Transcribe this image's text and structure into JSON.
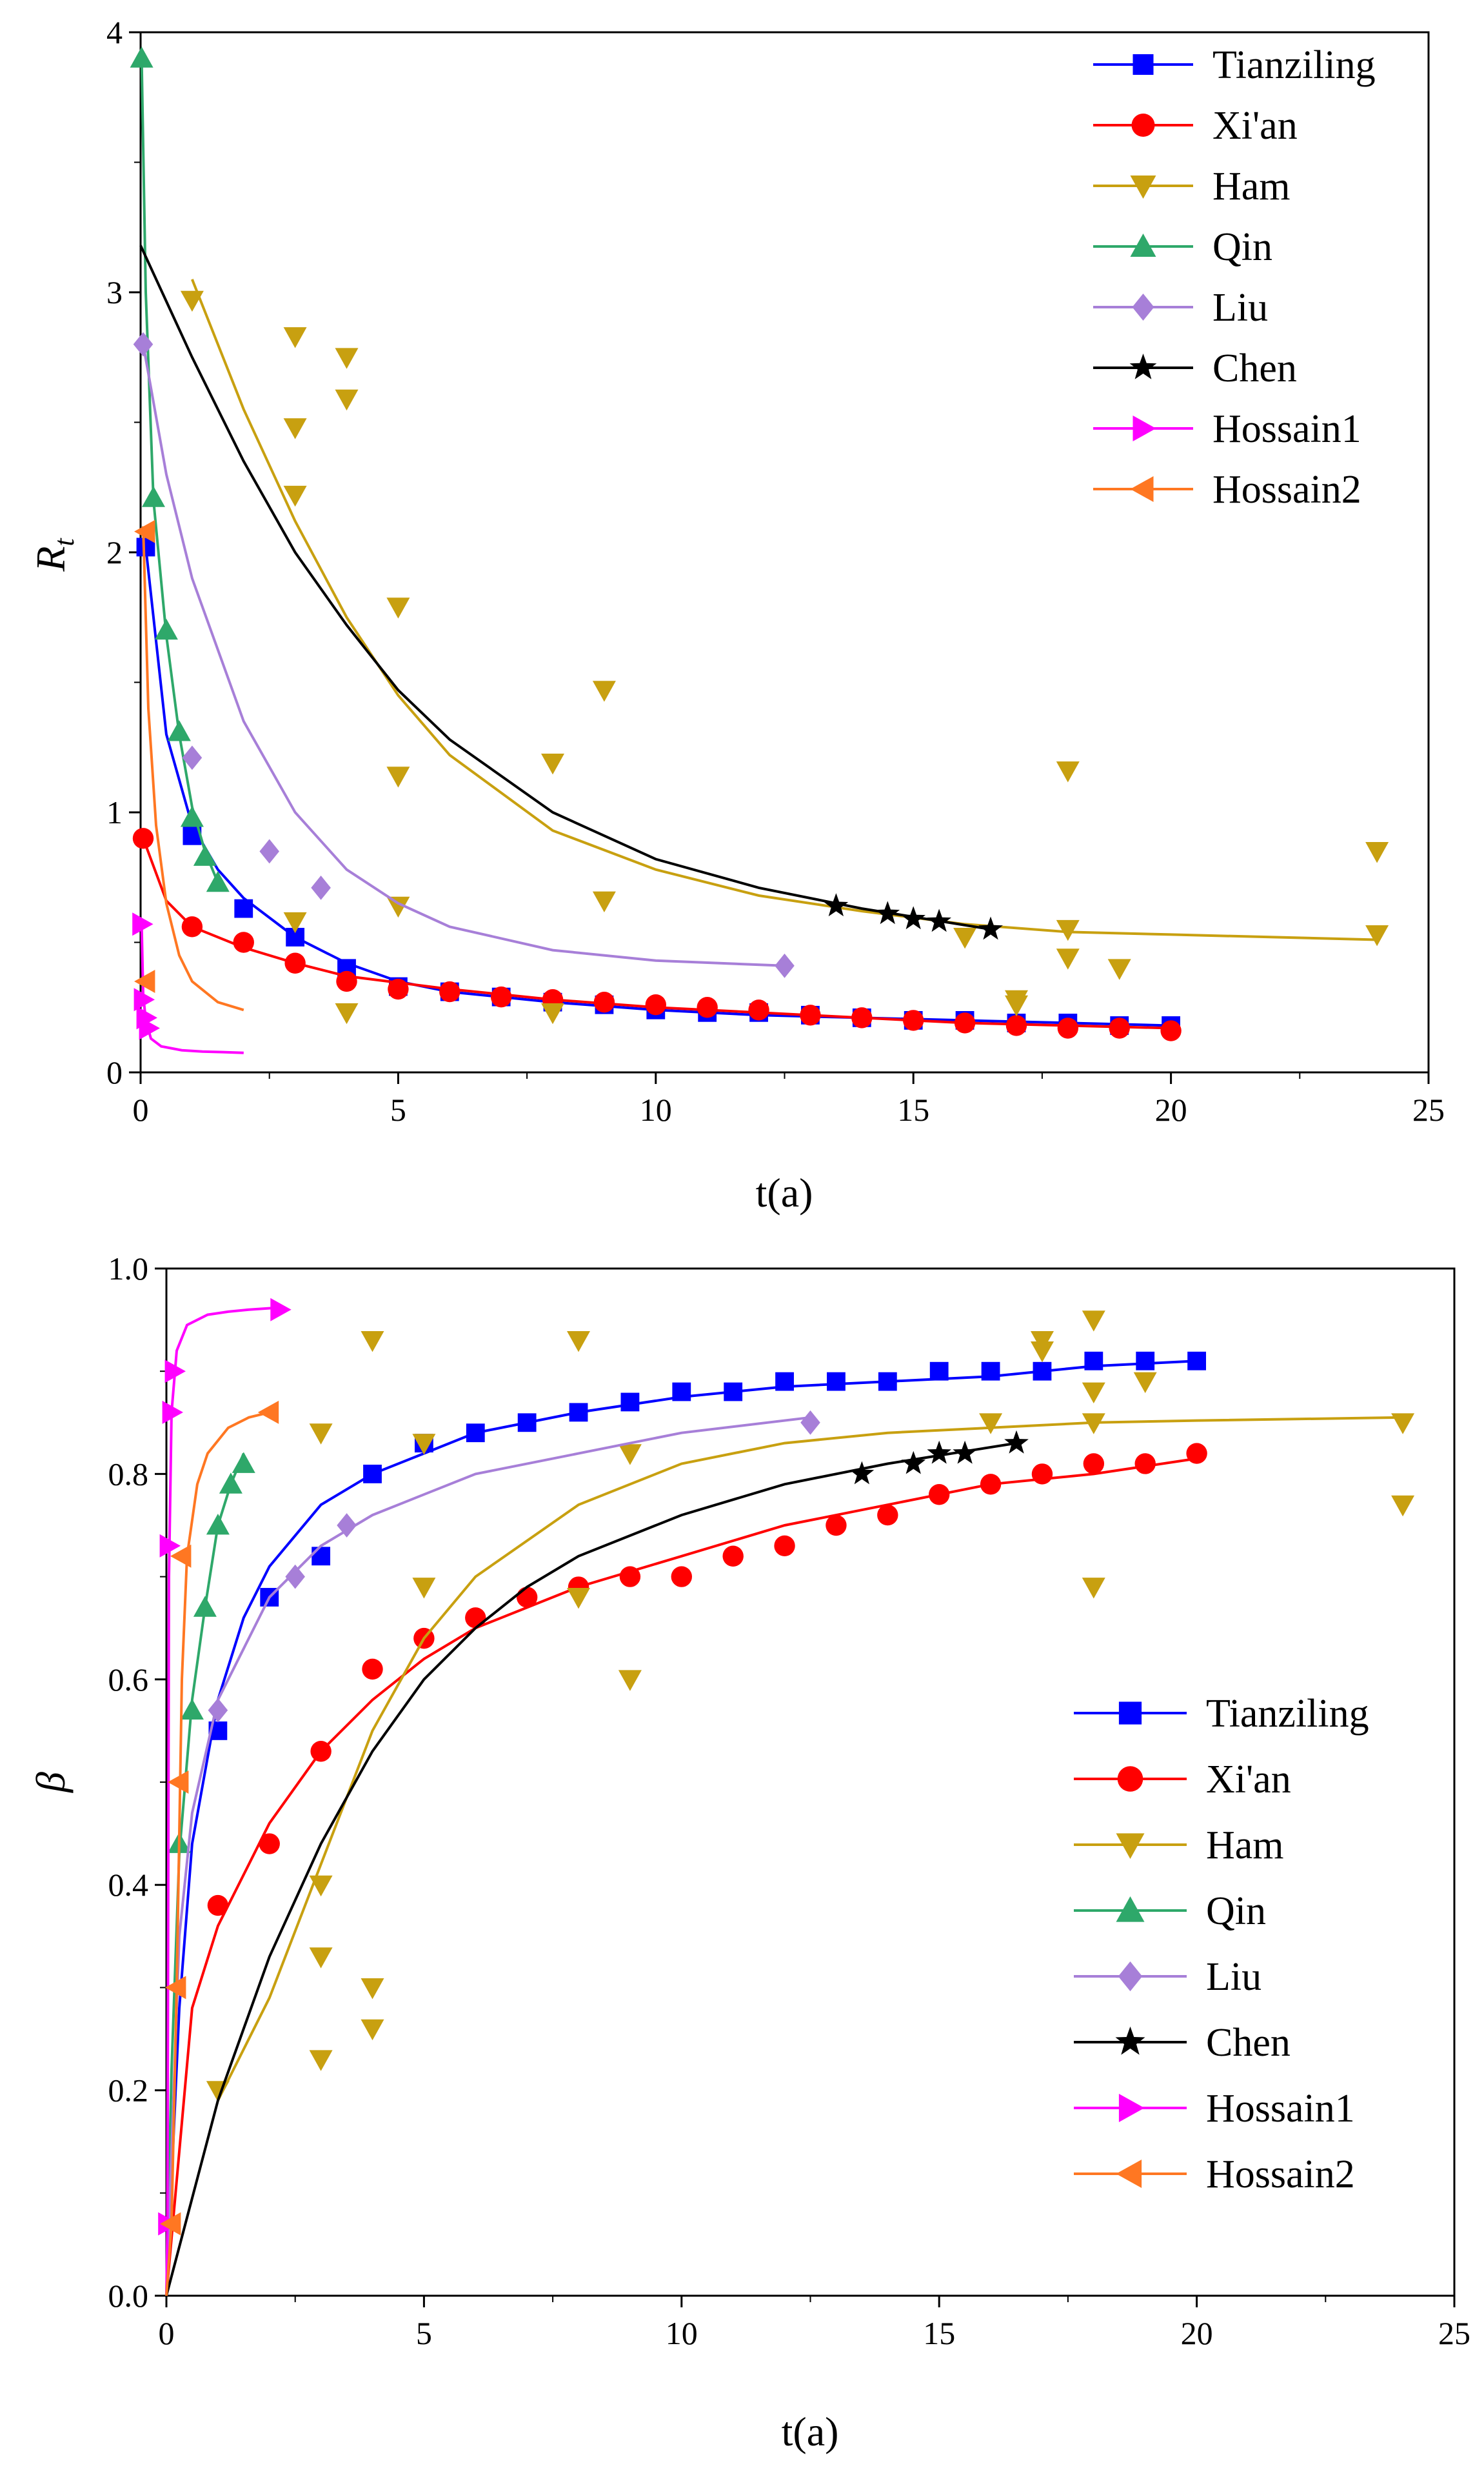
{
  "chart_data": [
    {
      "type": "scatter",
      "panel": "top",
      "xlabel": "t(a)",
      "ylabel": "R",
      "ylabel_subscript": "t",
      "xlim": [
        0,
        25
      ],
      "ylim": [
        0,
        4
      ],
      "xticks": [
        0,
        5,
        10,
        15,
        20,
        25
      ],
      "yticks": [
        0,
        1,
        2,
        3,
        4
      ],
      "legend_position": "top-right",
      "series": [
        {
          "name": "Tianziling",
          "color": "#0000FF",
          "marker": "square",
          "x": [
            0.1,
            1,
            2,
            3,
            4,
            5,
            6,
            7,
            8,
            9,
            10,
            11,
            12,
            13,
            14,
            15,
            16,
            17,
            18,
            19,
            20
          ],
          "y": [
            2.02,
            0.91,
            0.63,
            0.52,
            0.4,
            0.33,
            0.31,
            0.29,
            0.27,
            0.26,
            0.24,
            0.23,
            0.23,
            0.22,
            0.21,
            0.2,
            0.2,
            0.19,
            0.19,
            0.18,
            0.18
          ],
          "fit_x": [
            0.1,
            0.5,
            1,
            1.5,
            2,
            3,
            4,
            5,
            6,
            8,
            10,
            12,
            14,
            16,
            18,
            20
          ],
          "fit_y": [
            2.02,
            1.3,
            0.95,
            0.78,
            0.67,
            0.52,
            0.42,
            0.35,
            0.31,
            0.27,
            0.24,
            0.22,
            0.21,
            0.2,
            0.19,
            0.18
          ]
        },
        {
          "name": "Xi'an",
          "color": "#FF0000",
          "marker": "circle",
          "x": [
            0.05,
            1,
            2,
            3,
            4,
            5,
            6,
            7,
            8,
            9,
            10,
            11,
            12,
            13,
            14,
            15,
            16,
            17,
            18,
            19,
            20
          ],
          "y": [
            0.9,
            0.56,
            0.5,
            0.42,
            0.35,
            0.32,
            0.31,
            0.29,
            0.28,
            0.27,
            0.26,
            0.25,
            0.24,
            0.22,
            0.21,
            0.2,
            0.19,
            0.18,
            0.17,
            0.17,
            0.16
          ],
          "fit_x": [
            0.05,
            0.5,
            1,
            2,
            3,
            4,
            6,
            8,
            10,
            12,
            14,
            16,
            18,
            20
          ],
          "fit_y": [
            0.9,
            0.66,
            0.56,
            0.48,
            0.42,
            0.37,
            0.32,
            0.28,
            0.25,
            0.23,
            0.21,
            0.19,
            0.18,
            0.17
          ]
        },
        {
          "name": "Ham",
          "color": "#C8A010",
          "marker": "triangle-down",
          "x": [
            1,
            3,
            3,
            3,
            3,
            4,
            4,
            4,
            5,
            5,
            5,
            8,
            8,
            9,
            9,
            16,
            17,
            17,
            18,
            18,
            18,
            19,
            24,
            24
          ],
          "y": [
            2.97,
            2.83,
            2.48,
            2.22,
            0.58,
            2.75,
            2.59,
            0.23,
            1.79,
            1.14,
            0.64,
            1.19,
            0.23,
            1.47,
            0.66,
            0.52,
            0.28,
            0.26,
            1.16,
            0.55,
            0.44,
            0.4,
            0.85,
            0.53
          ],
          "fit_x": [
            1,
            2,
            3,
            4,
            5,
            6,
            8,
            10,
            12,
            14,
            16,
            18,
            20,
            24
          ],
          "fit_y": [
            3.05,
            2.55,
            2.12,
            1.75,
            1.45,
            1.22,
            0.93,
            0.78,
            0.68,
            0.62,
            0.57,
            0.54,
            0.53,
            0.51
          ]
        },
        {
          "name": "Qin",
          "color": "#2EA86A",
          "marker": "triangle-up",
          "x": [
            0.02,
            0.25,
            0.5,
            0.75,
            1.0,
            1.25,
            1.5
          ],
          "y": [
            3.9,
            2.21,
            1.7,
            1.31,
            0.98,
            0.83,
            0.73
          ],
          "fit_x": [
            0.02,
            0.1,
            0.25,
            0.5,
            0.75,
            1.0,
            1.25,
            1.5
          ],
          "fit_y": [
            3.9,
            3.0,
            2.2,
            1.68,
            1.3,
            1.02,
            0.85,
            0.73
          ]
        },
        {
          "name": "Liu",
          "color": "#A77FD8",
          "marker": "diamond",
          "x": [
            0.05,
            1,
            2.5,
            3.5,
            12.5
          ],
          "y": [
            2.8,
            1.21,
            0.85,
            0.71,
            0.41
          ],
          "fit_x": [
            0.05,
            0.5,
            1,
            2,
            3,
            4,
            5,
            6,
            8,
            10,
            12.5
          ],
          "fit_y": [
            2.8,
            2.3,
            1.9,
            1.35,
            1.0,
            0.78,
            0.65,
            0.56,
            0.47,
            0.43,
            0.41
          ]
        },
        {
          "name": "Chen",
          "color": "#000000",
          "marker": "star",
          "x": [
            13.5,
            14.5,
            15,
            15.5,
            16.5
          ],
          "y": [
            0.64,
            0.61,
            0.59,
            0.58,
            0.55
          ],
          "fit_x": [
            0,
            1,
            2,
            3,
            4,
            5,
            6,
            8,
            10,
            12,
            14,
            16.5
          ],
          "fit_y": [
            3.18,
            2.75,
            2.35,
            2.0,
            1.72,
            1.47,
            1.28,
            1.0,
            0.82,
            0.71,
            0.63,
            0.55
          ]
        },
        {
          "name": "Hossain1",
          "color": "#FF00FF",
          "marker": "triangle-right",
          "x": [
            0.02,
            0.05,
            0.1,
            0.15
          ],
          "y": [
            0.57,
            0.28,
            0.21,
            0.17
          ],
          "fit_x": [
            0.02,
            0.05,
            0.1,
            0.2,
            0.4,
            0.8,
            1.2,
            1.6,
            2.0
          ],
          "fit_y": [
            0.57,
            0.3,
            0.2,
            0.13,
            0.1,
            0.085,
            0.08,
            0.078,
            0.075
          ]
        },
        {
          "name": "Hossain2",
          "color": "#FF7722",
          "marker": "triangle-left",
          "x": [
            0.1,
            0.1
          ],
          "y": [
            2.08,
            0.35
          ],
          "fit_x": [
            0.05,
            0.15,
            0.3,
            0.5,
            0.75,
            1.0,
            1.5,
            2.0
          ],
          "fit_y": [
            2.1,
            1.4,
            0.95,
            0.65,
            0.45,
            0.35,
            0.27,
            0.24
          ]
        }
      ]
    },
    {
      "type": "scatter",
      "panel": "bottom",
      "xlabel": "t(a)",
      "ylabel": "β",
      "xlim": [
        0,
        25
      ],
      "ylim": [
        0,
        1
      ],
      "xticks": [
        0,
        5,
        10,
        15,
        20,
        25
      ],
      "yticks": [
        "0.0",
        "0.2",
        "0.4",
        "0.6",
        "0.8",
        "1.0"
      ],
      "legend_position": "bottom-right",
      "series": [
        {
          "name": "Tianziling",
          "color": "#0000FF",
          "marker": "square",
          "x": [
            1,
            2,
            3,
            4,
            5,
            6,
            7,
            8,
            9,
            10,
            11,
            12,
            13,
            14,
            15,
            16,
            17,
            18,
            19,
            20
          ],
          "y": [
            0.55,
            0.68,
            0.72,
            0.8,
            0.83,
            0.84,
            0.85,
            0.86,
            0.87,
            0.88,
            0.88,
            0.89,
            0.89,
            0.89,
            0.9,
            0.9,
            0.9,
            0.91,
            0.91,
            0.91
          ],
          "fit_x": [
            0,
            0.25,
            0.5,
            1,
            1.5,
            2,
            3,
            4,
            5,
            6,
            8,
            10,
            12,
            14,
            16,
            18,
            20
          ],
          "fit_y": [
            0.0,
            0.28,
            0.44,
            0.58,
            0.66,
            0.71,
            0.77,
            0.8,
            0.82,
            0.84,
            0.86,
            0.875,
            0.885,
            0.89,
            0.895,
            0.905,
            0.91
          ]
        },
        {
          "name": "Xi'an",
          "color": "#FF0000",
          "marker": "circle",
          "x": [
            1,
            2,
            3,
            4,
            5,
            6,
            7,
            8,
            9,
            10,
            11,
            12,
            13,
            14,
            15,
            16,
            17,
            18,
            19,
            20
          ],
          "y": [
            0.38,
            0.44,
            0.53,
            0.61,
            0.64,
            0.66,
            0.68,
            0.69,
            0.7,
            0.7,
            0.72,
            0.73,
            0.75,
            0.76,
            0.78,
            0.79,
            0.8,
            0.81,
            0.81,
            0.82
          ],
          "fit_x": [
            0,
            0.5,
            1,
            2,
            3,
            4,
            5,
            6,
            8,
            10,
            12,
            14,
            16,
            18,
            20
          ],
          "fit_y": [
            0.0,
            0.28,
            0.36,
            0.46,
            0.53,
            0.58,
            0.62,
            0.65,
            0.69,
            0.72,
            0.75,
            0.77,
            0.79,
            0.8,
            0.815
          ]
        },
        {
          "name": "Ham",
          "color": "#C8A010",
          "marker": "triangle-down",
          "x": [
            1,
            3,
            3,
            3,
            3,
            4,
            4,
            4,
            5,
            5,
            8,
            8,
            9,
            9,
            16,
            17,
            17,
            18,
            18,
            18,
            18,
            19,
            24,
            24
          ],
          "y": [
            0.2,
            0.84,
            0.4,
            0.33,
            0.23,
            0.93,
            0.3,
            0.26,
            0.83,
            0.69,
            0.93,
            0.68,
            0.82,
            0.6,
            0.85,
            0.93,
            0.92,
            0.95,
            0.88,
            0.85,
            0.69,
            0.89,
            0.85,
            0.77
          ],
          "fit_x": [
            1,
            2,
            3,
            4,
            5,
            6,
            8,
            10,
            12,
            14,
            16,
            18,
            20,
            24
          ],
          "fit_y": [
            0.19,
            0.29,
            0.42,
            0.55,
            0.64,
            0.7,
            0.77,
            0.81,
            0.83,
            0.84,
            0.845,
            0.85,
            0.852,
            0.855
          ]
        },
        {
          "name": "Qin",
          "color": "#2EA86A",
          "marker": "triangle-up",
          "x": [
            0.25,
            0.5,
            0.75,
            1.0,
            1.25,
            1.5
          ],
          "y": [
            0.44,
            0.57,
            0.67,
            0.75,
            0.79,
            0.81
          ],
          "fit_x": [
            0,
            0.1,
            0.25,
            0.5,
            0.75,
            1.0,
            1.25,
            1.5
          ],
          "fit_y": [
            0.0,
            0.22,
            0.43,
            0.58,
            0.67,
            0.75,
            0.79,
            0.82
          ]
        },
        {
          "name": "Liu",
          "color": "#A77FD8",
          "marker": "diamond",
          "x": [
            1,
            2.5,
            3.5,
            12.5
          ],
          "y": [
            0.57,
            0.7,
            0.75,
            0.85
          ],
          "fit_x": [
            0,
            0.25,
            0.5,
            1,
            2,
            3,
            4,
            5,
            6,
            8,
            10,
            12.5
          ],
          "fit_y": [
            0.0,
            0.35,
            0.47,
            0.58,
            0.68,
            0.73,
            0.76,
            0.78,
            0.8,
            0.82,
            0.84,
            0.855
          ]
        },
        {
          "name": "Chen",
          "color": "#000000",
          "marker": "star",
          "x": [
            13.5,
            14.5,
            15,
            15.5,
            16.5
          ],
          "y": [
            0.8,
            0.81,
            0.82,
            0.82,
            0.83
          ],
          "fit_x": [
            0,
            1,
            2,
            3,
            4,
            5,
            6,
            7,
            8,
            10,
            12,
            14,
            16.5
          ],
          "fit_y": [
            0.0,
            0.19,
            0.33,
            0.44,
            0.53,
            0.6,
            0.65,
            0.69,
            0.72,
            0.76,
            0.79,
            0.81,
            0.83
          ]
        },
        {
          "name": "Hossain1",
          "color": "#FF00FF",
          "marker": "triangle-right",
          "x": [
            0.02,
            0.05,
            0.1,
            0.15,
            2.2
          ],
          "y": [
            0.07,
            0.73,
            0.86,
            0.9,
            0.96
          ],
          "fit_x": [
            0,
            0.02,
            0.05,
            0.1,
            0.2,
            0.4,
            0.8,
            1.2,
            1.6,
            2.2
          ],
          "fit_y": [
            0.0,
            0.07,
            0.7,
            0.86,
            0.92,
            0.945,
            0.955,
            0.958,
            0.96,
            0.962
          ]
        },
        {
          "name": "Hossain2",
          "color": "#FF7722",
          "marker": "triangle-left",
          "x": [
            0.1,
            0.2,
            0.25,
            0.3,
            2.0
          ],
          "y": [
            0.07,
            0.3,
            0.5,
            0.72,
            0.86
          ],
          "fit_x": [
            0,
            0.1,
            0.2,
            0.3,
            0.4,
            0.6,
            0.8,
            1.2,
            1.6,
            2.0
          ],
          "fit_y": [
            0.0,
            0.07,
            0.3,
            0.6,
            0.72,
            0.79,
            0.82,
            0.845,
            0.855,
            0.86
          ]
        }
      ]
    }
  ]
}
